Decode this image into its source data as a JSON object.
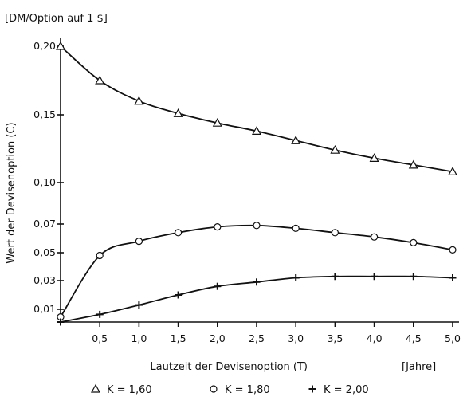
{
  "chart_data": {
    "type": "line",
    "ylabel_top": "[DM/Option auf 1 $]",
    "ylabel": "Wert der Devisenoption (C)",
    "xlabel": "Lautzeit der Devisenoption (T)",
    "xunit": "[Jahre]",
    "x_ticks": [
      "0,5",
      "1,0",
      "1,5",
      "2,0",
      "2,5",
      "3,0",
      "3,5",
      "4,0",
      "4,5",
      "5,0"
    ],
    "y_ticks": [
      "0,01",
      "0,03",
      "0,05",
      "0,07",
      "0,10",
      "0,15",
      "0,20"
    ],
    "xlim": [
      0,
      5.0
    ],
    "x": [
      0,
      0.5,
      1.0,
      1.5,
      2.0,
      2.5,
      3.0,
      3.5,
      4.0,
      4.5,
      5.0
    ],
    "series": [
      {
        "name": "K = 1,60",
        "marker": "triangle",
        "values": [
          0.2,
          0.175,
          0.16,
          0.151,
          0.144,
          0.138,
          0.131,
          0.124,
          0.118,
          0.113,
          0.108
        ]
      },
      {
        "name": "K = 1,80",
        "marker": "circle",
        "values": [
          0.004,
          0.048,
          0.058,
          0.064,
          0.068,
          0.069,
          0.067,
          0.064,
          0.061,
          0.057,
          0.052
        ]
      },
      {
        "name": "K = 2,00",
        "marker": "plus",
        "values": [
          0.0,
          0.006,
          0.013,
          0.02,
          0.026,
          0.029,
          0.032,
          0.033,
          0.033,
          0.033,
          0.032
        ]
      }
    ]
  }
}
